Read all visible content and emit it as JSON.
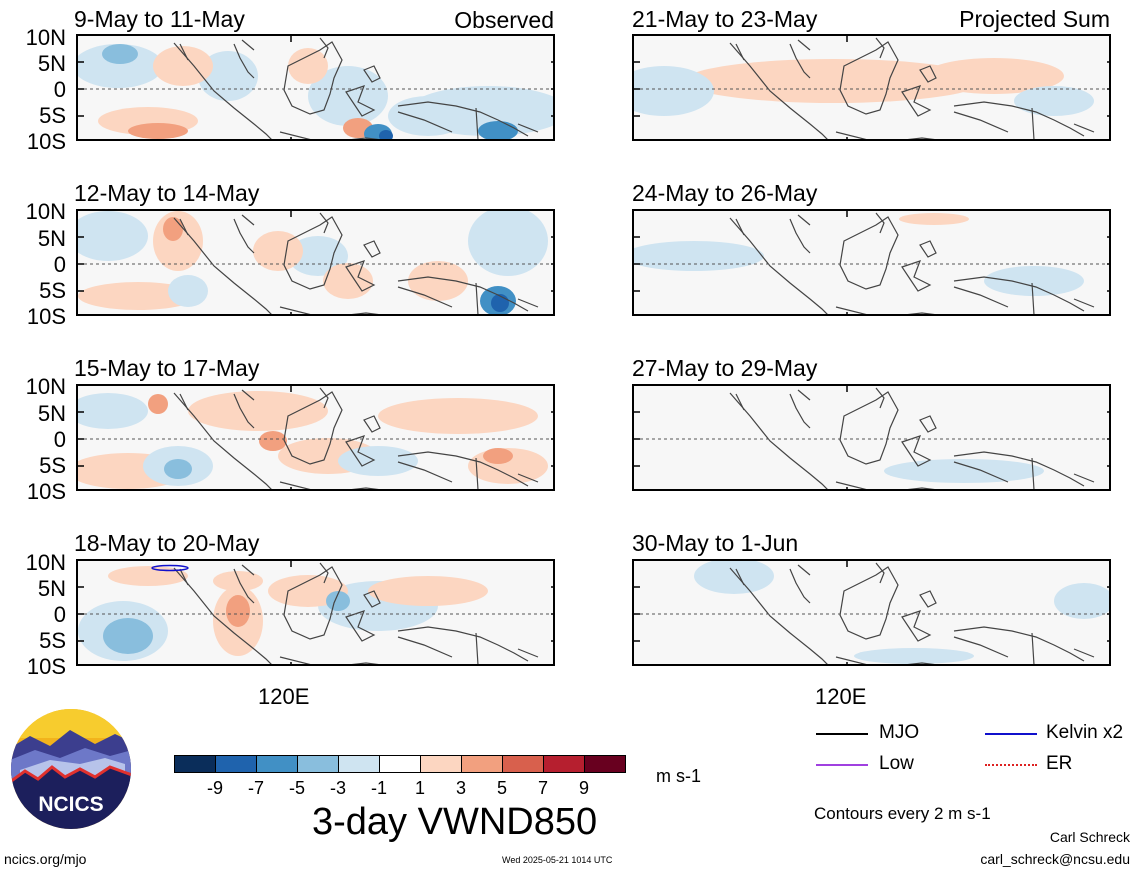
{
  "panels": [
    {
      "title": "9-May to 11-May",
      "corner": "Observed"
    },
    {
      "title": "21-May to 23-May",
      "corner": "Projected Sum"
    },
    {
      "title": "12-May to 14-May",
      "corner": ""
    },
    {
      "title": "24-May to 26-May",
      "corner": ""
    },
    {
      "title": "15-May to 17-May",
      "corner": ""
    },
    {
      "title": "27-May to 29-May",
      "corner": ""
    },
    {
      "title": "18-May to 20-May",
      "corner": ""
    },
    {
      "title": "30-May to 1-Jun",
      "corner": ""
    }
  ],
  "y_ticks": [
    "10N",
    "5N",
    "0",
    "5S",
    "10S"
  ],
  "x_tick_label": "120E",
  "colorbar": {
    "colors": [
      "#0a2d5a",
      "#1f63ad",
      "#4190c5",
      "#89bedd",
      "#cfe4f1",
      "#ffffff",
      "#fcd6c1",
      "#f2a07f",
      "#d8604d",
      "#b61f2f",
      "#68001f"
    ],
    "ticks": [
      "-9",
      "-7",
      "-5",
      "-3",
      "-1",
      "1",
      "3",
      "5",
      "7",
      "9"
    ],
    "units": "m s-1"
  },
  "main_title": "3-day VWND850",
  "legend": [
    {
      "label": "MJO",
      "color": "#000000",
      "style": "solid"
    },
    {
      "label": "Kelvin x2",
      "color": "#1010cc",
      "style": "solid"
    },
    {
      "label": "Low",
      "color": "#a040e0",
      "style": "solid"
    },
    {
      "label": "ER",
      "color": "#dd2222",
      "style": "dotted"
    }
  ],
  "contour_note": "Contours every 2 m s-1",
  "author": "Carl Schreck",
  "email": "carl_schreck@ncsu.edu",
  "website": "ncics.org/mjo",
  "timestamp": "Wed 2025-05-21 1014 UTC",
  "logo_text": "NCICS"
}
